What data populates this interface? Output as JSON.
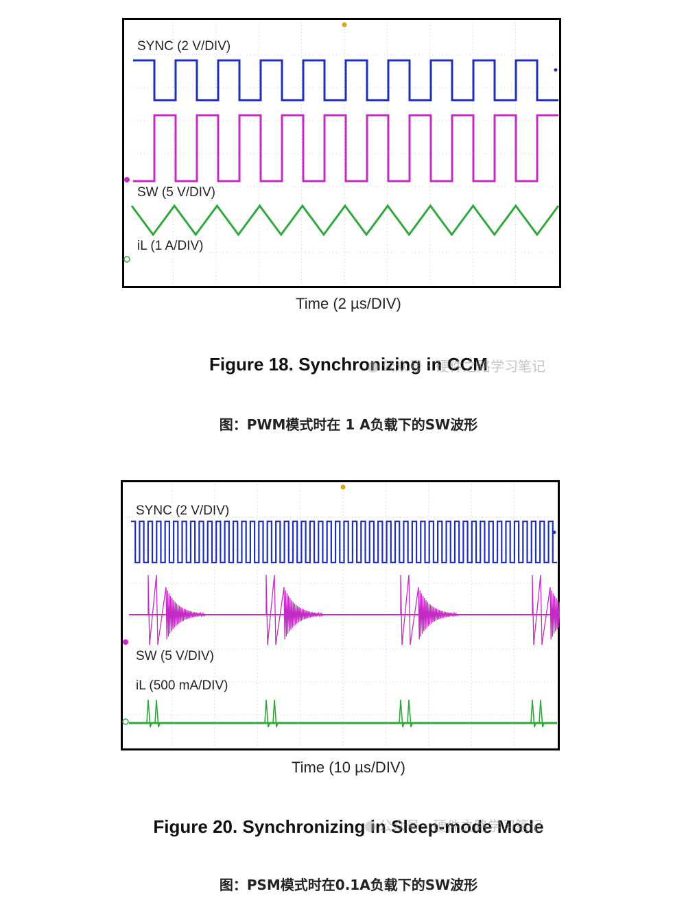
{
  "colors": {
    "sync": "#1f2fb8",
    "sw": "#c42ac4",
    "il": "#2ea83a",
    "frame": "#000000",
    "grid": "#bdbdbd"
  },
  "chart_data": [
    {
      "type": "line",
      "title": "Figure 18. Synchronizing in CCM",
      "xlabel": "Time (2 µs/DIV)",
      "x_divisions": 10,
      "y_divisions": 8,
      "series": [
        {
          "name": "SYNC (2 V/DIV)",
          "waveform": "square",
          "cycles": 10,
          "phase_high_first": true
        },
        {
          "name": "SW (5 V/DIV)",
          "waveform": "square",
          "cycles": 10,
          "phase_high_first": false
        },
        {
          "name": "iL (1 A/DIV)",
          "waveform": "triangle",
          "cycles": 10
        }
      ]
    },
    {
      "type": "line",
      "title": "Figure 20. Synchronizing in Sleep-mode Mode",
      "xlabel": "Time (10 µs/DIV)",
      "x_divisions": 10,
      "y_divisions": 8,
      "series": [
        {
          "name": "SYNC (2 V/DIV)",
          "waveform": "square",
          "cycles": 50
        },
        {
          "name": "SW (5 V/DIV)",
          "waveform": "burst",
          "bursts": 4
        },
        {
          "name": "iL (500 mA/DIV)",
          "waveform": "pulse",
          "bursts": 4
        }
      ]
    }
  ],
  "captions": {
    "fig1_cn": "图：PWM模式时在 1 A负载下的SW波形",
    "fig2_cn": "图：PSM模式时在0.1A负载下的SW波形"
  },
  "watermarks": {
    "wm1": "公众号 · 硬件之路学习笔记",
    "wm2": "公众号 · 硬件之路学习笔记"
  }
}
